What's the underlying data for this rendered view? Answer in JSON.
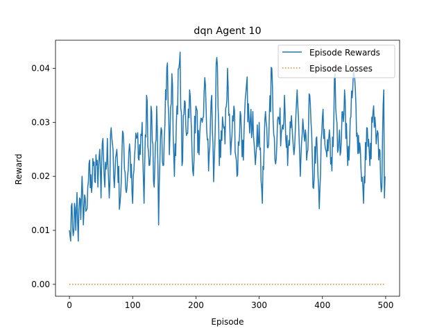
{
  "chart_data": {
    "type": "line",
    "title": "dqn Agent 10",
    "xlabel": "Episode",
    "ylabel": "Reward",
    "xlim": [
      -22,
      522
    ],
    "ylim": [
      -0.0022,
      0.0452
    ],
    "xticks": [
      0,
      100,
      200,
      300,
      400,
      500
    ],
    "xtick_labels": [
      "0",
      "100",
      "200",
      "300",
      "400",
      "500"
    ],
    "yticks": [
      0.0,
      0.01,
      0.02,
      0.03,
      0.04
    ],
    "ytick_labels": [
      "0.00",
      "0.01",
      "0.02",
      "0.03",
      "0.04"
    ],
    "grid": false,
    "legend_position": "top-right",
    "series": [
      {
        "name": "Episode Rewards",
        "style": "solid",
        "color": "#1f77b4",
        "keypoints": [
          [
            0,
            0.01
          ],
          [
            2,
            0.008
          ],
          [
            4,
            0.015
          ],
          [
            6,
            0.009
          ],
          [
            8,
            0.015
          ],
          [
            10,
            0.01
          ],
          [
            12,
            0.017
          ],
          [
            14,
            0.008
          ],
          [
            16,
            0.016
          ],
          [
            18,
            0.012
          ],
          [
            20,
            0.02
          ],
          [
            22,
            0.011
          ],
          [
            25,
            0.016
          ],
          [
            28,
            0.014
          ],
          [
            30,
            0.019
          ],
          [
            32,
            0.023
          ],
          [
            35,
            0.017
          ],
          [
            38,
            0.022
          ],
          [
            40,
            0.019
          ],
          [
            42,
            0.024
          ],
          [
            45,
            0.018
          ],
          [
            48,
            0.025
          ],
          [
            50,
            0.016
          ],
          [
            53,
            0.027
          ],
          [
            56,
            0.018
          ],
          [
            60,
            0.027
          ],
          [
            63,
            0.016
          ],
          [
            66,
            0.029
          ],
          [
            70,
            0.02
          ],
          [
            75,
            0.025
          ],
          [
            80,
            0.015
          ],
          [
            85,
            0.028
          ],
          [
            90,
            0.017
          ],
          [
            95,
            0.026
          ],
          [
            100,
            0.015
          ],
          [
            105,
            0.028
          ],
          [
            110,
            0.023
          ],
          [
            115,
            0.03
          ],
          [
            118,
            0.015
          ],
          [
            122,
            0.035
          ],
          [
            126,
            0.022
          ],
          [
            130,
            0.032
          ],
          [
            134,
            0.018
          ],
          [
            138,
            0.033
          ],
          [
            141,
            0.011
          ],
          [
            145,
            0.029
          ],
          [
            148,
            0.022
          ],
          [
            152,
            0.036
          ],
          [
            155,
            0.041
          ],
          [
            158,
            0.024
          ],
          [
            162,
            0.039
          ],
          [
            166,
            0.02
          ],
          [
            170,
            0.033
          ],
          [
            175,
            0.043
          ],
          [
            178,
            0.022
          ],
          [
            182,
            0.034
          ],
          [
            186,
            0.028
          ],
          [
            190,
            0.036
          ],
          [
            195,
            0.021
          ],
          [
            200,
            0.033
          ],
          [
            205,
            0.024
          ],
          [
            210,
            0.03
          ],
          [
            215,
            0.037
          ],
          [
            220,
            0.021
          ],
          [
            225,
            0.035
          ],
          [
            228,
            0.019
          ],
          [
            233,
            0.042
          ],
          [
            237,
            0.022
          ],
          [
            242,
            0.031
          ],
          [
            246,
            0.026
          ],
          [
            250,
            0.04
          ],
          [
            255,
            0.024
          ],
          [
            260,
            0.033
          ],
          [
            265,
            0.02
          ],
          [
            270,
            0.032
          ],
          [
            275,
            0.023
          ],
          [
            280,
            0.037
          ],
          [
            285,
            0.028
          ],
          [
            290,
            0.032
          ],
          [
            295,
            0.024
          ],
          [
            300,
            0.03
          ],
          [
            305,
            0.015
          ],
          [
            310,
            0.032
          ],
          [
            315,
            0.026
          ],
          [
            320,
            0.04
          ],
          [
            325,
            0.023
          ],
          [
            330,
            0.031
          ],
          [
            335,
            0.028
          ],
          [
            340,
            0.035
          ],
          [
            345,
            0.022
          ],
          [
            350,
            0.029
          ],
          [
            355,
            0.024
          ],
          [
            360,
            0.036
          ],
          [
            365,
            0.02
          ],
          [
            370,
            0.029
          ],
          [
            375,
            0.023
          ],
          [
            380,
            0.035
          ],
          [
            385,
            0.018
          ],
          [
            390,
            0.027
          ],
          [
            395,
            0.014
          ],
          [
            400,
            0.031
          ],
          [
            405,
            0.025
          ],
          [
            410,
            0.027
          ],
          [
            415,
            0.021
          ],
          [
            420,
            0.039
          ],
          [
            425,
            0.025
          ],
          [
            430,
            0.027
          ],
          [
            435,
            0.036
          ],
          [
            440,
            0.022
          ],
          [
            445,
            0.031
          ],
          [
            450,
            0.039
          ],
          [
            455,
            0.028
          ],
          [
            460,
            0.025
          ],
          [
            465,
            0.015
          ],
          [
            470,
            0.029
          ],
          [
            475,
            0.022
          ],
          [
            480,
            0.032
          ],
          [
            485,
            0.026
          ],
          [
            490,
            0.025
          ],
          [
            494,
            0.018
          ],
          [
            497,
            0.036
          ],
          [
            498,
            0.016
          ],
          [
            499,
            0.02
          ]
        ]
      },
      {
        "name": "Episode Losses",
        "style": "dotted",
        "color": "#ff7f0e",
        "points": [
          [
            0,
            0.0
          ],
          [
            499,
            0.0
          ]
        ]
      }
    ]
  }
}
